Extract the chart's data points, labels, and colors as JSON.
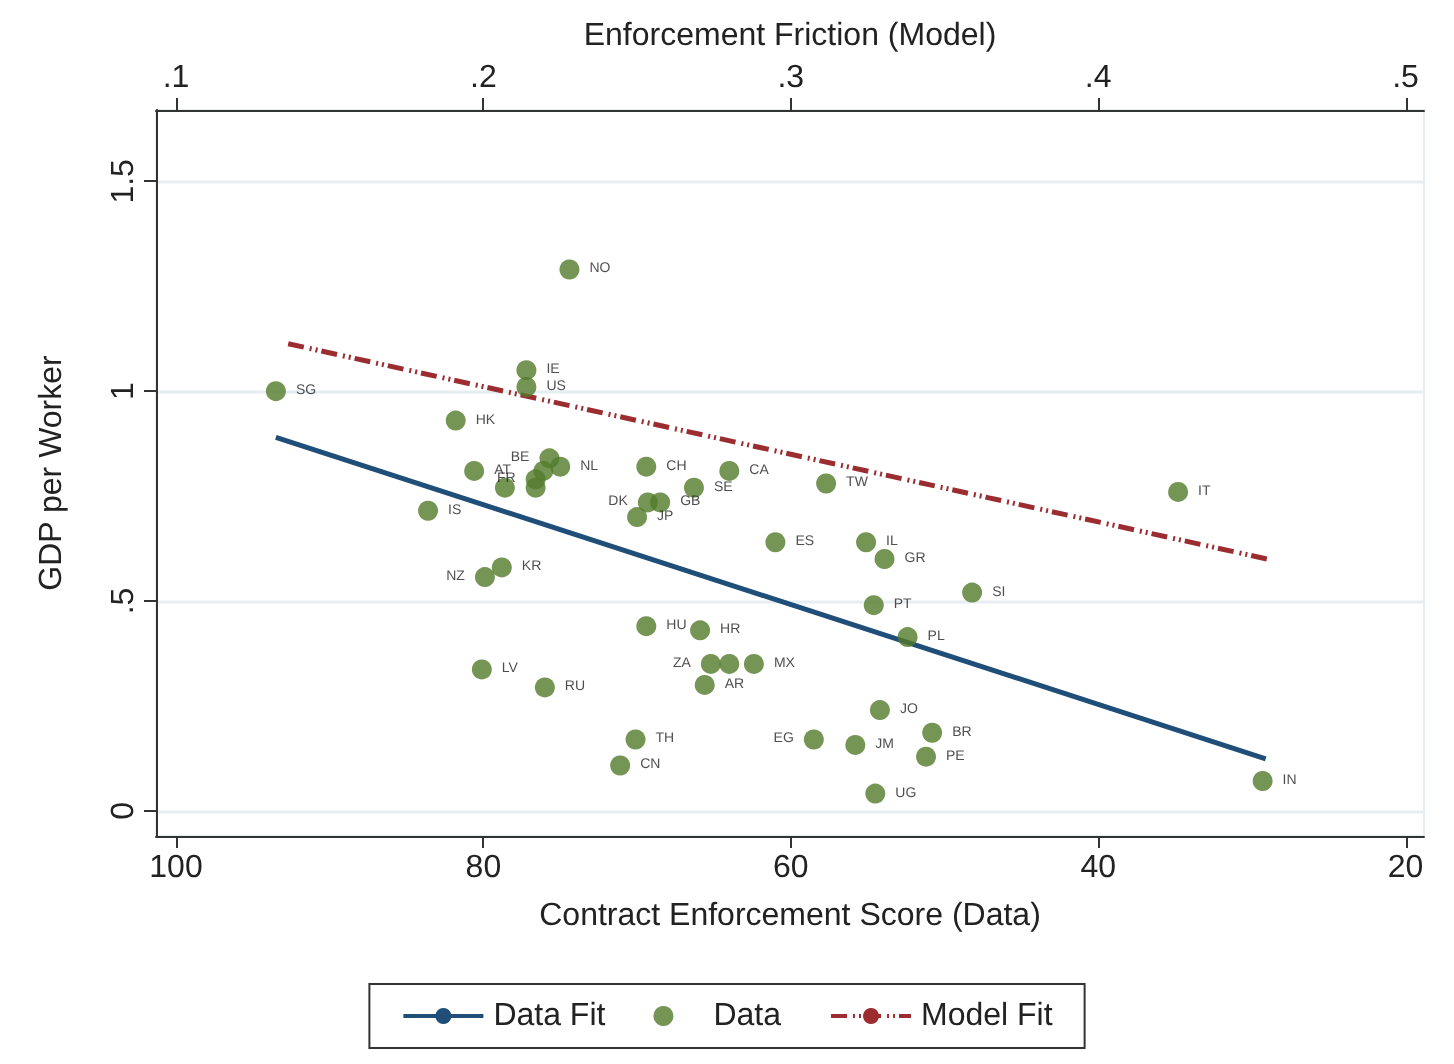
{
  "chart_data": {
    "type": "scatter",
    "xlabel": "Contract Enforcement Score (Data)",
    "ylabel": "GDP per Worker",
    "x2label": "Enforcement Friction (Model)",
    "xlim": [
      101.3,
      18.8
    ],
    "xticks": [
      100,
      80,
      60,
      40,
      20
    ],
    "x2lim": [
      0.0935,
      0.506
    ],
    "x2ticks": [
      {
        "value": 0.1,
        "label": ".1"
      },
      {
        "value": 0.2,
        "label": ".2"
      },
      {
        "value": 0.3,
        "label": ".3"
      },
      {
        "value": 0.4,
        "label": ".4"
      },
      {
        "value": 0.5,
        "label": ".5"
      }
    ],
    "ylim": [
      -0.06,
      1.67
    ],
    "yticks": [
      0,
      {
        "value": 0.5,
        "label": ".5"
      },
      1,
      {
        "value": 1.5,
        "label": "1.5"
      }
    ],
    "grid": "y",
    "legend": "bottom",
    "series": [
      {
        "name": "Data Fit",
        "type": "line",
        "color": "#1f4e79",
        "line_style": "solid",
        "x": [
          93.5,
          29.1
        ],
        "values": [
          0.89,
          0.124
        ]
      },
      {
        "name": "Data",
        "type": "scatter",
        "color": "#527a2a",
        "marker": "circle",
        "x": [
          74.4,
          77.2,
          77.2,
          93.5,
          81.8,
          80.6,
          78.6,
          75.7,
          75.0,
          76.1,
          76.6,
          76.6,
          69.4,
          64.0,
          66.3,
          69.3,
          68.5,
          70.0,
          83.6,
          61.0,
          78.8,
          79.9,
          69.4,
          65.9,
          57.7,
          34.8,
          55.1,
          53.9,
          48.2,
          54.6,
          52.4,
          65.2,
          64.0,
          62.4,
          65.6,
          54.2,
          50.8,
          58.5,
          55.8,
          51.2,
          54.5,
          29.3,
          70.1,
          71.1,
          80.1,
          76.0
        ],
        "values": [
          1.29,
          1.05,
          1.01,
          1.0,
          0.93,
          0.81,
          0.77,
          0.84,
          0.82,
          0.81,
          0.79,
          0.77,
          0.82,
          0.81,
          0.77,
          0.735,
          0.735,
          0.7,
          0.715,
          0.64,
          0.58,
          0.557,
          0.44,
          0.43,
          0.78,
          0.76,
          0.64,
          0.6,
          0.52,
          0.49,
          0.414,
          0.35,
          0.35,
          0.35,
          0.3,
          0.24,
          0.186,
          0.17,
          0.157,
          0.129,
          0.041,
          0.071,
          0.17,
          0.108,
          0.337,
          0.294
        ],
        "value_labels": [
          "NO",
          "IE",
          "US",
          "SG",
          "HK",
          "AT",
          null,
          "BE",
          "NL",
          null,
          "FR",
          null,
          "CH",
          "CA",
          "SE",
          "DK",
          "GB",
          "JP",
          "IS",
          "ES",
          "KR",
          "NZ",
          "HU",
          "HR",
          "TW",
          "IT",
          "IL",
          "GR",
          "SI",
          "PT",
          "PL",
          "ZA",
          null,
          "MX",
          "AR",
          "JO",
          "BR",
          "EG",
          "JM",
          "PE",
          "UG",
          "IN",
          "TH",
          "CN",
          "LV",
          "RU"
        ]
      },
      {
        "name": "Model Fit",
        "type": "line",
        "color": "#9b2d30",
        "line_style": "dashed",
        "x": [
          92.7,
          29.0
        ],
        "values": [
          1.113,
          0.6
        ]
      }
    ]
  }
}
